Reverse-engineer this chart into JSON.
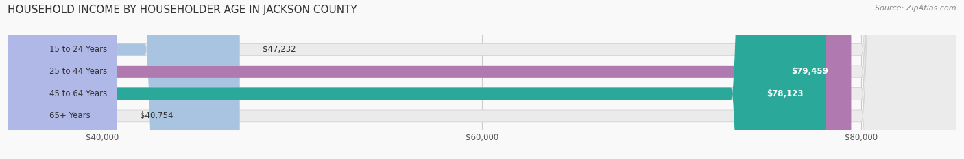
{
  "title": "HOUSEHOLD INCOME BY HOUSEHOLDER AGE IN JACKSON COUNTY",
  "source": "Source: ZipAtlas.com",
  "categories": [
    "15 to 24 Years",
    "25 to 44 Years",
    "45 to 64 Years",
    "65+ Years"
  ],
  "values": [
    47232,
    79459,
    78123,
    40754
  ],
  "bar_colors": [
    "#a8c4e0",
    "#b07ab0",
    "#2aa89a",
    "#b0b8e8"
  ],
  "bar_bg_color": "#ebebeb",
  "xmin": 35000,
  "xmax": 85000,
  "xticks": [
    40000,
    60000,
    80000
  ],
  "xtick_labels": [
    "$40,000",
    "$60,000",
    "$80,000"
  ],
  "title_fontsize": 11,
  "source_fontsize": 8,
  "bar_height": 0.55,
  "background_color": "#f9f9f9"
}
